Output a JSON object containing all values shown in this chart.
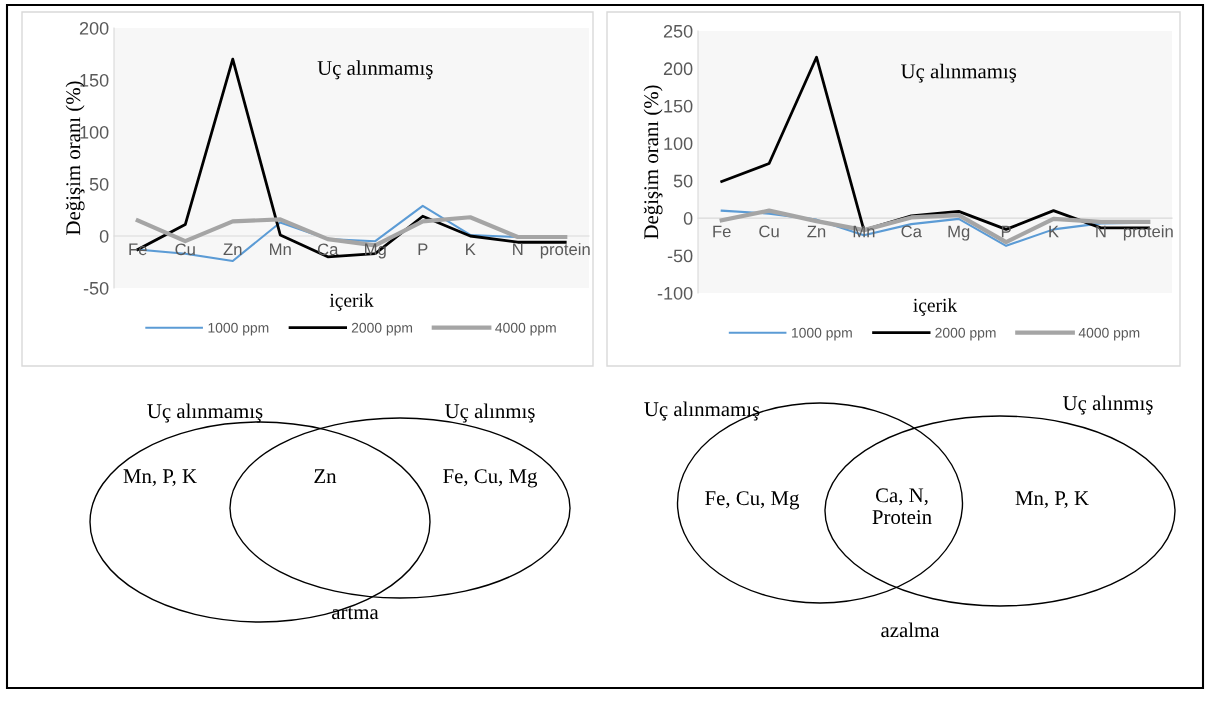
{
  "chart_data": [
    {
      "type": "line",
      "ylabel": "Değişim oranı (%)",
      "xlabel": "içerik",
      "annotations": [
        "Uç alınmamış"
      ],
      "categories": [
        "Fe",
        "Cu",
        "Zn",
        "Mn",
        "Ca",
        "Mg",
        "P",
        "K",
        "N",
        "protein"
      ],
      "ylim": [
        -50,
        200
      ],
      "yticks": [
        -50,
        0,
        50,
        100,
        150,
        200
      ],
      "legend": "bottom",
      "series": [
        {
          "name": "1000 ppm",
          "color": "#5b9bd5",
          "values": [
            -13,
            -17,
            -24,
            13,
            -3,
            -5,
            29,
            1,
            -1,
            -1
          ]
        },
        {
          "name": "2000 ppm",
          "color": "#000000",
          "values": [
            -13,
            11,
            170,
            1,
            -20,
            -17,
            19,
            0,
            -6,
            -6
          ]
        },
        {
          "name": "4000 ppm",
          "color": "#a5a5a5",
          "values": [
            15,
            -5,
            14,
            16,
            -3,
            -9,
            14,
            18,
            -1,
            -1
          ]
        }
      ]
    },
    {
      "type": "line",
      "ylabel": "Değişim oranı (%)",
      "xlabel": "içerik",
      "annotations": [
        "Uç alınmamış"
      ],
      "categories": [
        "Fe",
        "Cu",
        "Zn",
        "Mn",
        "Ca",
        "Mg",
        "P",
        "K",
        "N",
        "protein"
      ],
      "ylim": [
        -100,
        250
      ],
      "yticks": [
        -100,
        -50,
        0,
        50,
        100,
        150,
        200,
        250
      ],
      "legend": "bottom",
      "series": [
        {
          "name": "1000 ppm",
          "color": "#5b9bd5",
          "values": [
            10,
            6,
            -2,
            -23,
            -8,
            -1,
            -37,
            -15,
            -7,
            -6
          ]
        },
        {
          "name": "2000 ppm",
          "color": "#000000",
          "values": [
            49,
            73,
            215,
            -16,
            3,
            9,
            -15,
            10,
            -13,
            -13
          ]
        },
        {
          "name": "4000 ppm",
          "color": "#a5a5a5",
          "values": [
            -3,
            10,
            -4,
            -16,
            1,
            4,
            -32,
            -1,
            -5,
            -5
          ]
        }
      ]
    },
    {
      "type": "other",
      "annotations": [
        "Uç alınmamış",
        "Uç alınmış",
        "Mn, P, K",
        "Zn",
        "Fe, Cu, Mg",
        "artma"
      ]
    },
    {
      "type": "other",
      "annotations": [
        "Uç alınmamış",
        "Uç alınmış",
        "Fe, Cu, Mg",
        "Ca, N,\nProtein",
        "Mn, P, K",
        "azalma"
      ]
    }
  ]
}
